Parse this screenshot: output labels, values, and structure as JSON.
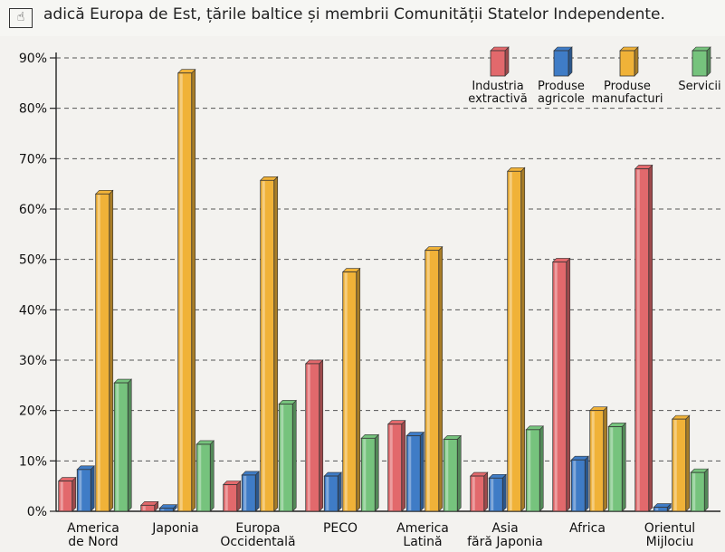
{
  "caption": {
    "text": "adică Europa de Est, țările baltice și membrii Comunității Statelor Independente.",
    "icon": "arrow-hand-icon"
  },
  "chart_data": {
    "type": "bar",
    "title": "",
    "xlabel": "",
    "ylabel": "",
    "ylim": [
      0,
      90
    ],
    "yticks": [
      "0%",
      "10%",
      "20%",
      "30%",
      "40%",
      "50%",
      "60%",
      "70%",
      "80%",
      "90%"
    ],
    "grid": true,
    "legend_position": "top-right",
    "categories": [
      [
        "America",
        "de Nord"
      ],
      [
        "Japonia"
      ],
      [
        "Europa",
        "Occidentală"
      ],
      [
        "PECO"
      ],
      [
        "America",
        "Latină"
      ],
      [
        "Asia",
        "fără Japonia"
      ],
      [
        "Africa"
      ],
      [
        "Orientul",
        "Mijlociu"
      ]
    ],
    "series": [
      {
        "name": [
          "Industria",
          "extractivă"
        ],
        "color": "#e2696c",
        "values": [
          6,
          1.2,
          5.3,
          29.3,
          17.3,
          7,
          49.5,
          68
        ]
      },
      {
        "name": [
          "Produse",
          "agricole"
        ],
        "color": "#3f7cc6",
        "values": [
          8.3,
          0.6,
          7.2,
          7,
          15,
          6.6,
          10.2,
          0.8
        ]
      },
      {
        "name": [
          "Produse",
          "manufacturi"
        ],
        "color": "#f0b238",
        "values": [
          63,
          87,
          65.7,
          47.5,
          51.8,
          67.5,
          20,
          18.3
        ]
      },
      {
        "name": [
          "Servicii"
        ],
        "color": "#76c37d",
        "values": [
          25.5,
          13.3,
          21.3,
          14.5,
          14.3,
          16.2,
          16.8,
          7.7
        ]
      }
    ]
  }
}
